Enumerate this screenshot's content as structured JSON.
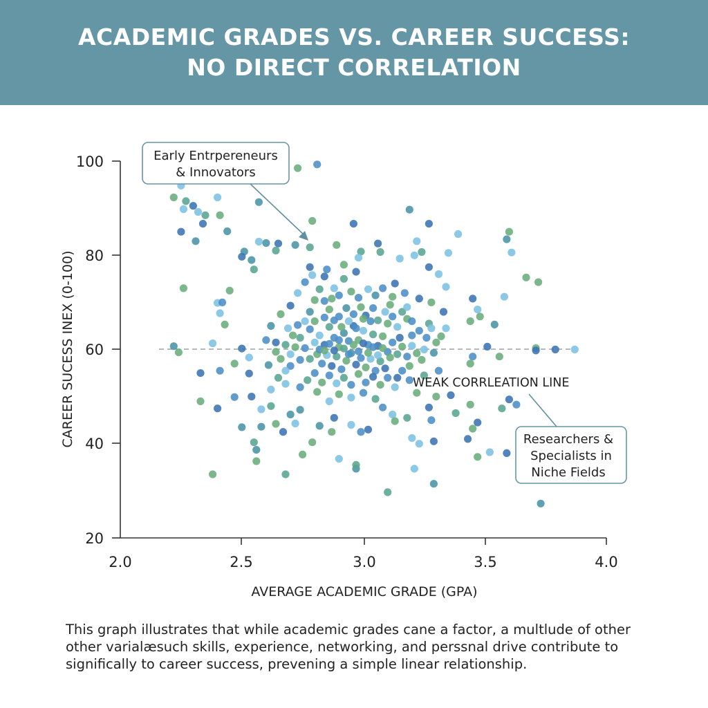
{
  "header": {
    "title_line1": "ACADEMIC GRADES VS. CAREER SUCCESS:",
    "title_line2": "NO DIRECT CORRELATION",
    "background": "#6496a6"
  },
  "caption": {
    "line1": "This graph illustrates that while academic grades cane a factor, a multlude of other",
    "line2": "other varialæsuch skills, experience, networking, and perssnal drive contribute to",
    "line3": "significally to career success, prevening a simple linear relationship."
  },
  "annotations": {
    "top_left_box": {
      "line1": "Early Entrpereneurs",
      "line2": "& Innovators"
    },
    "correlation_label": "WEAK CORRLEATION LINE",
    "bottom_right_box": {
      "line1": "Researchers &",
      "line2": "Specialists in",
      "line3": "Niche Fields"
    }
  },
  "palette": [
    "#3b74b3",
    "#4b8ec6",
    "#7cc2e2",
    "#4a94a6",
    "#6aad7c",
    "#5aa592"
  ],
  "chart_data": {
    "type": "scatter",
    "title": "ACADEMIC GRADES VS. CAREER SUCCESS: NO DIRECT CORRELATION",
    "xlabel": "AVERAGE ACADEMIC GRADE (GPA)",
    "ylabel": "CAREER SUCESS INEX (0-100)",
    "xlim": [
      2.0,
      4.0
    ],
    "ylim": [
      20,
      100
    ],
    "xticks": [
      "2.0",
      "2.5",
      "3.0",
      "3.5",
      "4.0"
    ],
    "yticks": [
      "100",
      "80",
      "60",
      "40",
      "20"
    ],
    "grid": false,
    "reference_line": {
      "label": "WEAK CORRLEATION LINE",
      "y": 60,
      "x_range": [
        2.16,
        3.88
      ],
      "style": "dashed"
    },
    "points": [
      [
        2.81,
        99.3,
        1
      ],
      [
        2.73,
        98.5,
        4
      ],
      [
        2.22,
        92.3,
        4
      ],
      [
        2.25,
        94.8,
        2
      ],
      [
        2.27,
        91.5,
        5
      ],
      [
        2.3,
        90.5,
        0
      ],
      [
        2.26,
        89.8,
        2
      ],
      [
        2.32,
        89.2,
        2
      ],
      [
        2.35,
        88.5,
        5
      ],
      [
        2.4,
        92.3,
        2
      ],
      [
        2.41,
        88.5,
        4
      ],
      [
        2.34,
        86.7,
        0
      ],
      [
        2.25,
        85.0,
        0
      ],
      [
        2.44,
        85.1,
        3
      ],
      [
        2.31,
        83.0,
        3
      ],
      [
        2.6,
        82.6,
        3
      ],
      [
        2.57,
        82.9,
        2
      ],
      [
        2.51,
        80.8,
        3
      ],
      [
        2.5,
        79.7,
        0
      ],
      [
        2.65,
        82.5,
        0
      ],
      [
        2.72,
        82.2,
        3
      ],
      [
        2.55,
        77.0,
        5
      ],
      [
        2.54,
        79.0,
        3
      ],
      [
        2.64,
        81.0,
        5
      ],
      [
        2.78,
        81.7,
        5
      ],
      [
        2.79,
        87.3,
        4
      ],
      [
        2.57,
        91.3,
        3
      ],
      [
        2.96,
        86.7,
        0
      ],
      [
        2.89,
        82.2,
        4
      ],
      [
        3.27,
        86.7,
        0
      ],
      [
        3.19,
        89.7,
        3
      ],
      [
        3.39,
        84.5,
        2
      ],
      [
        3.22,
        83.0,
        2
      ],
      [
        3.24,
        80.7,
        5
      ],
      [
        3.21,
        80.0,
        2
      ],
      [
        3.15,
        79.3,
        2
      ],
      [
        3.06,
        82.5,
        0
      ],
      [
        3.07,
        80.7,
        5
      ],
      [
        2.99,
        80.8,
        5
      ],
      [
        2.98,
        79.5,
        2
      ],
      [
        2.97,
        76.5,
        0
      ],
      [
        3.27,
        77.5,
        0
      ],
      [
        3.35,
        80.5,
        2
      ],
      [
        3.31,
        76.0,
        2
      ],
      [
        3.34,
        73.3,
        2
      ],
      [
        3.6,
        85.0,
        4
      ],
      [
        3.59,
        83.4,
        3
      ],
      [
        3.61,
        80.6,
        2
      ],
      [
        3.67,
        75.3,
        4
      ],
      [
        3.72,
        74.3,
        4
      ],
      [
        3.58,
        71.2,
        2
      ],
      [
        3.54,
        65.3,
        3
      ],
      [
        3.44,
        66.0,
        4
      ],
      [
        3.47,
        68.5,
        2
      ],
      [
        3.48,
        67.0,
        4
      ],
      [
        3.45,
        70.8,
        0
      ],
      [
        2.26,
        73.0,
        4
      ],
      [
        2.4,
        69.9,
        2
      ],
      [
        2.42,
        70.0,
        1
      ],
      [
        2.41,
        67.7,
        2
      ],
      [
        2.43,
        65.3,
        4
      ],
      [
        2.38,
        61.3,
        2
      ],
      [
        2.41,
        55.5,
        1
      ],
      [
        2.22,
        60.7,
        3
      ],
      [
        2.24,
        59.4,
        4
      ],
      [
        2.33,
        55.0,
        0
      ],
      [
        2.33,
        49.0,
        4
      ],
      [
        2.4,
        47.5,
        0
      ],
      [
        2.47,
        49.9,
        1
      ],
      [
        2.5,
        60.2,
        0
      ],
      [
        2.53,
        58.3,
        2
      ],
      [
        2.53,
        54.9,
        0
      ],
      [
        2.54,
        50.0,
        0
      ],
      [
        2.5,
        43.5,
        3
      ],
      [
        2.55,
        40.3,
        5
      ],
      [
        2.58,
        47.3,
        2
      ],
      [
        2.58,
        43.6,
        3
      ],
      [
        2.56,
        38.7,
        3
      ],
      [
        2.56,
        36.3,
        4
      ],
      [
        2.38,
        33.5,
        4
      ],
      [
        2.68,
        33.5,
        5
      ],
      [
        2.61,
        56.7,
        3
      ],
      [
        2.47,
        57.0,
        4
      ],
      [
        2.45,
        72.5,
        4
      ],
      [
        3.6,
        49.4,
        0
      ],
      [
        3.63,
        48.3,
        1
      ],
      [
        3.57,
        47.5,
        5
      ],
      [
        3.59,
        38.0,
        0
      ],
      [
        3.52,
        38.2,
        2
      ],
      [
        3.73,
        27.3,
        3
      ],
      [
        3.79,
        60.0,
        0
      ],
      [
        3.87,
        60.0,
        2
      ],
      [
        3.71,
        60.3,
        4
      ],
      [
        3.71,
        59.8,
        0
      ],
      [
        3.51,
        60.6,
        0
      ],
      [
        3.45,
        58.5,
        1
      ],
      [
        3.44,
        57.0,
        4
      ],
      [
        3.56,
        58.5,
        4
      ],
      [
        3.47,
        44.5,
        0
      ],
      [
        3.45,
        43.2,
        4
      ],
      [
        3.47,
        37.2,
        4
      ],
      [
        3.43,
        41.0,
        0
      ],
      [
        3.44,
        48.3,
        4
      ],
      [
        3.38,
        46.5,
        5
      ],
      [
        3.36,
        50.3,
        0
      ],
      [
        3.3,
        50.0,
        4
      ],
      [
        3.27,
        47.7,
        0
      ],
      [
        3.28,
        45.0,
        1
      ],
      [
        3.29,
        40.5,
        0
      ],
      [
        3.23,
        40.0,
        2
      ],
      [
        3.2,
        41.2,
        2
      ],
      [
        3.29,
        31.5,
        3
      ],
      [
        3.21,
        34.7,
        2
      ],
      [
        3.1,
        29.7,
        5
      ],
      [
        2.97,
        34.7,
        3
      ],
      [
        2.9,
        36.8,
        2
      ],
      [
        2.97,
        35.5,
        5
      ],
      [
        2.82,
        43.8,
        3
      ],
      [
        2.79,
        40.3,
        4
      ],
      [
        2.75,
        37.7,
        4
      ],
      [
        2.67,
        42.5,
        0
      ],
      [
        2.7,
        46.2,
        3
      ],
      [
        2.72,
        44.3,
        2
      ],
      [
        2.64,
        44.2,
        4
      ],
      [
        2.62,
        48.0,
        5
      ],
      [
        2.62,
        51.5,
        2
      ],
      [
        2.68,
        52.7,
        2
      ],
      [
        2.74,
        47.2,
        3
      ],
      [
        2.81,
        51.0,
        4
      ],
      [
        2.86,
        49.0,
        2
      ],
      [
        2.88,
        45.5,
        0
      ],
      [
        2.87,
        42.5,
        4
      ],
      [
        2.95,
        44.0,
        2
      ],
      [
        2.99,
        42.5,
        1
      ],
      [
        3.02,
        43.0,
        0
      ],
      [
        3.08,
        47.7,
        1
      ],
      [
        3.12,
        46.2,
        2
      ],
      [
        3.13,
        44.8,
        4
      ],
      [
        3.18,
        45.5,
        5
      ],
      [
        3.22,
        50.8,
        4
      ],
      [
        3.19,
        53.5,
        1
      ],
      [
        3.14,
        54.0,
        0
      ],
      [
        3.09,
        68.0,
        2
      ],
      [
        3.11,
        69.5,
        4
      ],
      [
        3.05,
        71.5,
        3
      ],
      [
        3.13,
        74.0,
        0
      ],
      [
        3.17,
        72.0,
        1
      ],
      [
        3.23,
        70.8,
        0
      ],
      [
        3.28,
        70.0,
        4
      ],
      [
        3.33,
        68.0,
        0
      ],
      [
        3.34,
        64.5,
        2
      ],
      [
        3.32,
        62.8,
        4
      ],
      [
        3.27,
        65.5,
        5
      ],
      [
        3.23,
        64.0,
        1
      ],
      [
        3.18,
        66.5,
        4
      ],
      [
        3.15,
        62.5,
        0
      ],
      [
        3.25,
        60.0,
        2
      ],
      [
        3.29,
        59.3,
        3
      ],
      [
        3.24,
        57.8,
        4
      ],
      [
        3.31,
        55.5,
        1
      ],
      [
        3.25,
        54.5,
        5
      ],
      [
        2.66,
        67.5,
        4
      ],
      [
        2.7,
        69.3,
        0
      ],
      [
        2.73,
        72.0,
        2
      ],
      [
        2.76,
        74.3,
        1
      ],
      [
        2.8,
        70.5,
        4
      ],
      [
        2.78,
        68.0,
        3
      ],
      [
        2.84,
        75.5,
        0
      ],
      [
        2.88,
        73.0,
        2
      ],
      [
        2.92,
        75.0,
        5
      ],
      [
        2.95,
        72.3,
        4
      ],
      [
        2.84,
        70.3,
        1
      ],
      [
        2.69,
        64.5,
        2
      ],
      [
        2.64,
        61.5,
        0
      ],
      [
        2.66,
        58.0,
        4
      ],
      [
        2.7,
        56.5,
        1
      ],
      [
        2.74,
        62.5,
        5
      ],
      [
        2.62,
        65.0,
        3
      ],
      [
        2.6,
        62.0,
        1
      ],
      [
        2.65,
        54.0,
        5
      ],
      [
        2.68,
        55.5,
        2
      ],
      [
        2.78,
        64.3,
        1
      ],
      [
        2.8,
        66.0,
        4
      ],
      [
        2.82,
        63.0,
        2
      ],
      [
        2.84,
        61.0,
        0
      ],
      [
        2.86,
        64.8,
        5
      ],
      [
        2.88,
        62.5,
        1
      ],
      [
        2.9,
        60.5,
        4
      ],
      [
        2.92,
        63.5,
        3
      ],
      [
        2.94,
        61.8,
        1
      ],
      [
        2.96,
        65.0,
        0
      ],
      [
        2.98,
        62.0,
        4
      ],
      [
        3.0,
        64.0,
        2
      ],
      [
        3.02,
        61.0,
        1
      ],
      [
        3.04,
        63.2,
        5
      ],
      [
        3.06,
        60.8,
        0
      ],
      [
        3.08,
        62.8,
        4
      ],
      [
        3.1,
        59.5,
        1
      ],
      [
        2.81,
        59.0,
        4
      ],
      [
        2.83,
        57.0,
        1
      ],
      [
        2.85,
        58.8,
        2
      ],
      [
        2.87,
        56.5,
        0
      ],
      [
        2.89,
        58.5,
        5
      ],
      [
        2.91,
        55.8,
        1
      ],
      [
        2.93,
        57.6,
        4
      ],
      [
        2.95,
        59.2,
        3
      ],
      [
        2.97,
        56.8,
        0
      ],
      [
        2.99,
        58.2,
        1
      ],
      [
        3.01,
        56.2,
        4
      ],
      [
        3.03,
        58.0,
        2
      ],
      [
        3.05,
        55.5,
        1
      ],
      [
        3.07,
        57.5,
        5
      ],
      [
        3.09,
        56.0,
        0
      ],
      [
        3.11,
        58.3,
        4
      ],
      [
        2.76,
        60.3,
        1
      ],
      [
        2.78,
        58.0,
        5
      ],
      [
        2.8,
        61.5,
        2
      ],
      [
        2.82,
        60.0,
        1
      ],
      [
        2.84,
        59.8,
        4
      ],
      [
        2.86,
        61.2,
        1
      ],
      [
        2.88,
        59.8,
        0
      ],
      [
        2.9,
        62.0,
        1
      ],
      [
        2.92,
        60.2,
        5
      ],
      [
        2.94,
        59.0,
        1
      ],
      [
        2.96,
        61.0,
        4
      ],
      [
        2.98,
        59.6,
        1
      ],
      [
        3.0,
        61.3,
        0
      ],
      [
        3.02,
        59.3,
        4
      ],
      [
        3.04,
        60.5,
        1
      ],
      [
        3.06,
        58.8,
        2
      ],
      [
        3.08,
        60.3,
        4
      ],
      [
        3.12,
        61.5,
        1
      ],
      [
        3.14,
        59.0,
        5
      ],
      [
        3.16,
        60.6,
        4
      ],
      [
        3.18,
        58.5,
        1
      ],
      [
        3.2,
        60.8,
        2
      ],
      [
        3.22,
        59.2,
        4
      ],
      [
        2.74,
        57.8,
        1
      ],
      [
        2.72,
        60.5,
        4
      ],
      [
        2.7,
        59.0,
        2
      ],
      [
        2.68,
        61.0,
        5
      ],
      [
        2.84,
        66.8,
        1
      ],
      [
        2.86,
        68.5,
        4
      ],
      [
        2.9,
        67.0,
        1
      ],
      [
        2.93,
        68.8,
        3
      ],
      [
        2.96,
        67.5,
        1
      ],
      [
        2.99,
        69.0,
        4
      ],
      [
        3.01,
        67.2,
        0
      ],
      [
        3.04,
        68.8,
        1
      ],
      [
        3.06,
        66.2,
        5
      ],
      [
        3.03,
        66.0,
        1
      ],
      [
        3.0,
        66.5,
        4
      ],
      [
        2.97,
        64.5,
        1
      ],
      [
        2.94,
        66.0,
        2
      ],
      [
        2.91,
        64.8,
        4
      ],
      [
        2.88,
        66.2,
        1
      ],
      [
        3.1,
        65.5,
        4
      ],
      [
        3.12,
        67.0,
        1
      ],
      [
        3.14,
        64.8,
        2
      ],
      [
        3.16,
        68.0,
        5
      ],
      [
        3.2,
        66.0,
        1
      ],
      [
        2.8,
        55.0,
        1
      ],
      [
        2.83,
        53.0,
        4
      ],
      [
        2.86,
        54.5,
        1
      ],
      [
        2.89,
        52.8,
        2
      ],
      [
        2.92,
        54.0,
        5
      ],
      [
        2.95,
        52.5,
        1
      ],
      [
        2.98,
        54.8,
        4
      ],
      [
        3.01,
        53.0,
        1
      ],
      [
        3.04,
        54.2,
        0
      ],
      [
        3.07,
        52.5,
        4
      ],
      [
        3.1,
        54.0,
        1
      ],
      [
        3.13,
        52.0,
        2
      ],
      [
        3.16,
        55.5,
        1
      ],
      [
        3.19,
        56.5,
        4
      ],
      [
        2.77,
        53.5,
        5
      ],
      [
        2.74,
        52.0,
        1
      ],
      [
        2.9,
        50.5,
        4
      ],
      [
        2.95,
        49.8,
        2
      ],
      [
        3.0,
        50.8,
        1
      ],
      [
        3.05,
        49.5,
        5
      ],
      [
        2.76,
        66.0,
        2
      ],
      [
        2.73,
        65.2,
        1
      ],
      [
        2.71,
        63.0,
        4
      ],
      [
        2.98,
        71.0,
        1
      ],
      [
        3.02,
        72.8,
        2
      ],
      [
        2.9,
        71.5,
        1
      ],
      [
        2.87,
        70.8,
        4
      ],
      [
        3.08,
        73.0,
        1
      ],
      [
        3.12,
        71.2,
        4
      ],
      [
        3.18,
        69.0,
        2
      ],
      [
        2.82,
        72.8,
        5
      ],
      [
        2.79,
        75.8,
        2
      ],
      [
        2.85,
        77.0,
        1
      ],
      [
        2.92,
        78.0,
        4
      ],
      [
        2.78,
        77.5,
        0
      ],
      [
        3.26,
        62.5,
        1
      ],
      [
        3.28,
        64.5,
        2
      ],
      [
        3.3,
        61.5,
        4
      ],
      [
        3.2,
        63.0,
        1
      ],
      [
        2.64,
        59.5,
        4
      ]
    ]
  }
}
